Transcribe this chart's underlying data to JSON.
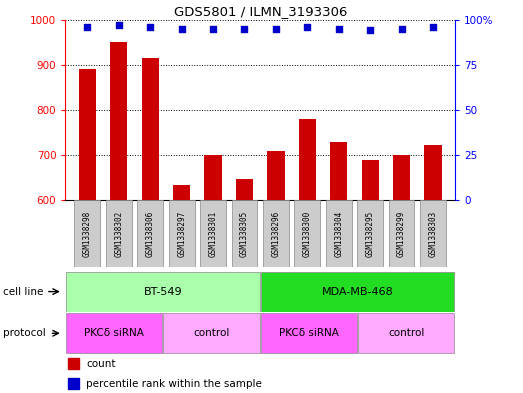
{
  "title": "GDS5801 / ILMN_3193306",
  "samples": [
    "GSM1338298",
    "GSM1338302",
    "GSM1338306",
    "GSM1338297",
    "GSM1338301",
    "GSM1338305",
    "GSM1338296",
    "GSM1338300",
    "GSM1338304",
    "GSM1338295",
    "GSM1338299",
    "GSM1338303"
  ],
  "counts": [
    890,
    950,
    915,
    635,
    700,
    648,
    710,
    780,
    730,
    690,
    700,
    722
  ],
  "percentile_ranks": [
    96,
    97,
    96,
    95,
    95,
    95,
    95,
    96,
    95,
    94,
    95,
    96
  ],
  "ylim_left": [
    600,
    1000
  ],
  "ylim_right": [
    0,
    100
  ],
  "yticks_left": [
    600,
    700,
    800,
    900,
    1000
  ],
  "yticks_right": [
    0,
    25,
    50,
    75,
    100
  ],
  "cell_line_groups": [
    {
      "label": "BT-549",
      "start": 0,
      "end": 6,
      "color": "#aaffaa"
    },
    {
      "label": "MDA-MB-468",
      "start": 6,
      "end": 12,
      "color": "#22dd22"
    }
  ],
  "protocol_groups": [
    {
      "label": "PKCδ siRNA",
      "start": 0,
      "end": 3,
      "color": "#ff66ff"
    },
    {
      "label": "control",
      "start": 3,
      "end": 6,
      "color": "#ffaaff"
    },
    {
      "label": "PKCδ siRNA",
      "start": 6,
      "end": 9,
      "color": "#ff66ff"
    },
    {
      "label": "control",
      "start": 9,
      "end": 12,
      "color": "#ffaaff"
    }
  ],
  "bar_color": "#cc0000",
  "dot_color": "#0000cc",
  "bar_width": 0.55,
  "background_color": "#ffffff",
  "cell_line_row_label": "cell line",
  "protocol_row_label": "protocol",
  "legend_count_label": "count",
  "legend_percentile_label": "percentile rank within the sample",
  "sample_box_color": "#cccccc",
  "sample_box_edge_color": "#888888"
}
